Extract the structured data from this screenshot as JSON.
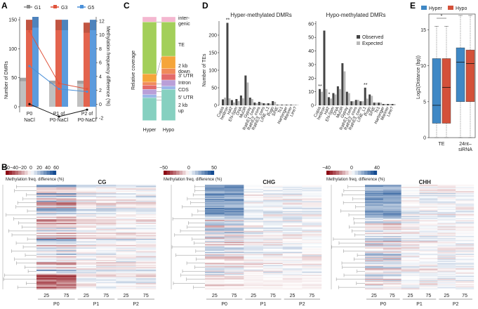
{
  "panels": {
    "A": {
      "letter": "A",
      "ylabel_left": "Number of DMRs",
      "ylabel_right": "Methylation frequency difference (%)",
      "legend": [
        "G1",
        "G3",
        "G5"
      ],
      "colors": {
        "G1": "#8c8c8c",
        "G3": "#e0533b",
        "G5": "#4a90d9"
      }
    },
    "B": {
      "letter": "B",
      "legend_title": "Methylation freq. difference (%)",
      "panels": [
        {
          "name": "CG",
          "ticks": [
            "−60",
            "−40",
            "−20",
            "0",
            "20",
            "40",
            "60"
          ]
        },
        {
          "name": "CHG",
          "ticks": [
            "−50",
            "0",
            "50"
          ]
        },
        {
          "name": "CHH",
          "ticks": [
            "−40",
            "0",
            "40"
          ]
        }
      ],
      "col_labels": [
        "25",
        "75",
        "25",
        "75",
        "25",
        "75"
      ],
      "groups": [
        "P0",
        "P1",
        "P2"
      ]
    },
    "C": {
      "letter": "C",
      "ylabel": "Relative coverage",
      "categories": [
        "inter-genic",
        "TE",
        "2 kb down",
        "3' UTR",
        "Intron",
        "CDS",
        "5' UTR",
        "2 kb up"
      ],
      "xlabels": [
        "Hyper",
        "Hypo"
      ]
    },
    "D": {
      "letter": "D",
      "titles": [
        "Hyper-methylated DMRs",
        "Hypo-methylated DMRs"
      ],
      "ylabel": "Number of TEs",
      "legend": [
        "Observed",
        "Expected"
      ],
      "te_names": [
        "Copia",
        "helitron",
        "HAT",
        "EN-Spm",
        "DNA",
        "MuDR",
        "Gypsy",
        "RathE1_cons",
        "RathE2_cons",
        "RathE3_cons",
        "LINE_L1",
        "Pogo",
        "SINE",
        "Tc1",
        "Harbinger",
        "Mariner",
        "Line?"
      ],
      "annot_star": "**",
      "annot_single": "*"
    },
    "E": {
      "letter": "E",
      "ylabel": "Log2(Distance (bp))",
      "legend": [
        "Hyper",
        "Hypo"
      ],
      "xlabels": [
        "TE",
        "24nt-siRNA"
      ],
      "sig": "*"
    }
  },
  "chart_data": [
    {
      "type": "bar",
      "panel": "A",
      "categories": [
        "P0 NaCl",
        "P1 of P0-NaCl",
        "P2 of P0-NaCl"
      ],
      "series": [
        {
          "name": "G1",
          "values": [
            50,
            45,
            45
          ]
        },
        {
          "name": "G3",
          "values": [
            150,
            150,
            145
          ]
        },
        {
          "name": "G5",
          "values": [
            155,
            150,
            150
          ]
        }
      ],
      "yticks_left": [
        "0",
        "50",
        "100",
        "150"
      ],
      "yticks_right": [
        "-2",
        "0",
        "2",
        "4",
        "6",
        "8",
        "10",
        "12"
      ],
      "xlabels": [
        "P0\nNaCl",
        "P1 of\nP0-NaCl",
        "P2 of\nP0-NaCl"
      ]
    },
    {
      "type": "bar",
      "panel": "C",
      "categories": [
        "Hyper",
        "Hypo"
      ],
      "stacked": true,
      "series": [
        {
          "name": "intergenic",
          "values": [
            0.05,
            0.05
          ]
        },
        {
          "name": "TE",
          "values": [
            0.5,
            0.33
          ]
        },
        {
          "name": "2 kb down",
          "values": [
            0.08,
            0.12
          ]
        },
        {
          "name": "3' UTR",
          "values": [
            0.03,
            0.05
          ]
        },
        {
          "name": "Intron",
          "values": [
            0.04,
            0.06
          ]
        },
        {
          "name": "CDS",
          "values": [
            0.05,
            0.06
          ]
        },
        {
          "name": "5' UTR",
          "values": [
            0.03,
            0.03
          ]
        },
        {
          "name": "2 kb up",
          "values": [
            0.22,
            0.3
          ]
        }
      ],
      "colors": [
        "#f4b7d0",
        "#a3cf5a",
        "#f5a53a",
        "#f08a5a",
        "#e36a6a",
        "#b99fd8",
        "#9ab7e8",
        "#86d0c0"
      ]
    },
    {
      "type": "bar",
      "panel": "D",
      "series": [
        {
          "name": "Observed (hyper)",
          "values": [
            17,
            235,
            15,
            18,
            28,
            85,
            22,
            8,
            10,
            6,
            6,
            12,
            2,
            2,
            2,
            2,
            1
          ]
        },
        {
          "name": "Expected (hyper)",
          "values": [
            22,
            20,
            8,
            12,
            20,
            65,
            18,
            6,
            8,
            5,
            5,
            10,
            2,
            2,
            2,
            2,
            1
          ]
        },
        {
          "name": "Observed (hypo)",
          "values": [
            12,
            55,
            6,
            9,
            14,
            31,
            10,
            3,
            4,
            3,
            13,
            8,
            2,
            2,
            1,
            1,
            1
          ]
        },
        {
          "name": "Expected (hypo)",
          "values": [
            10,
            12,
            5,
            8,
            12,
            25,
            9,
            3,
            4,
            3,
            5,
            7,
            2,
            2,
            1,
            1,
            1
          ]
        }
      ],
      "yticks_hyper": [
        "0",
        "50",
        "100",
        "150",
        "200"
      ],
      "yticks_hypo": [
        "0",
        "10",
        "20",
        "30",
        "40",
        "50",
        "60"
      ]
    },
    {
      "type": "box",
      "panel": "E",
      "categories": [
        "TE",
        "24nt-siRNA"
      ],
      "yticks": [
        "0",
        "5",
        "10",
        "15"
      ]
    }
  ]
}
